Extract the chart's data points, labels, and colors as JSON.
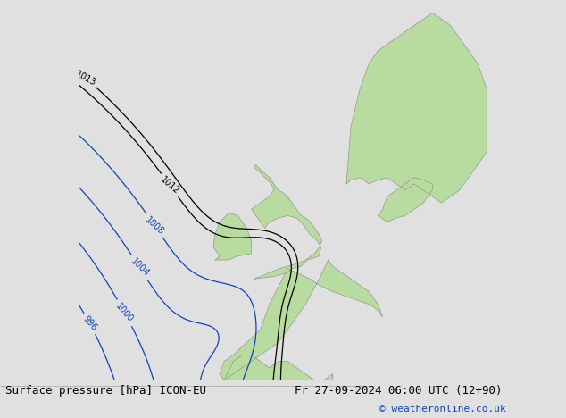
{
  "title_left": "Surface pressure [hPa] ICON-EU",
  "title_right": "Fr 27-09-2024 06:00 UTC (12+90)",
  "credit": "© weatheronline.co.uk",
  "bg_color": "#e0e0e0",
  "land_color": "#b8dba0",
  "border_color": "#888888",
  "isobar_color_blue": "#1144bb",
  "isobar_color_black": "#000000",
  "isobar_color_red": "#cc2200",
  "credit_color": "#1144bb",
  "title_fontsize": 9.0,
  "credit_fontsize": 8.0,
  "isobar_fontsize": 7.0,
  "map_xlim": [
    -25,
    20
  ],
  "map_ylim": [
    42,
    72
  ]
}
